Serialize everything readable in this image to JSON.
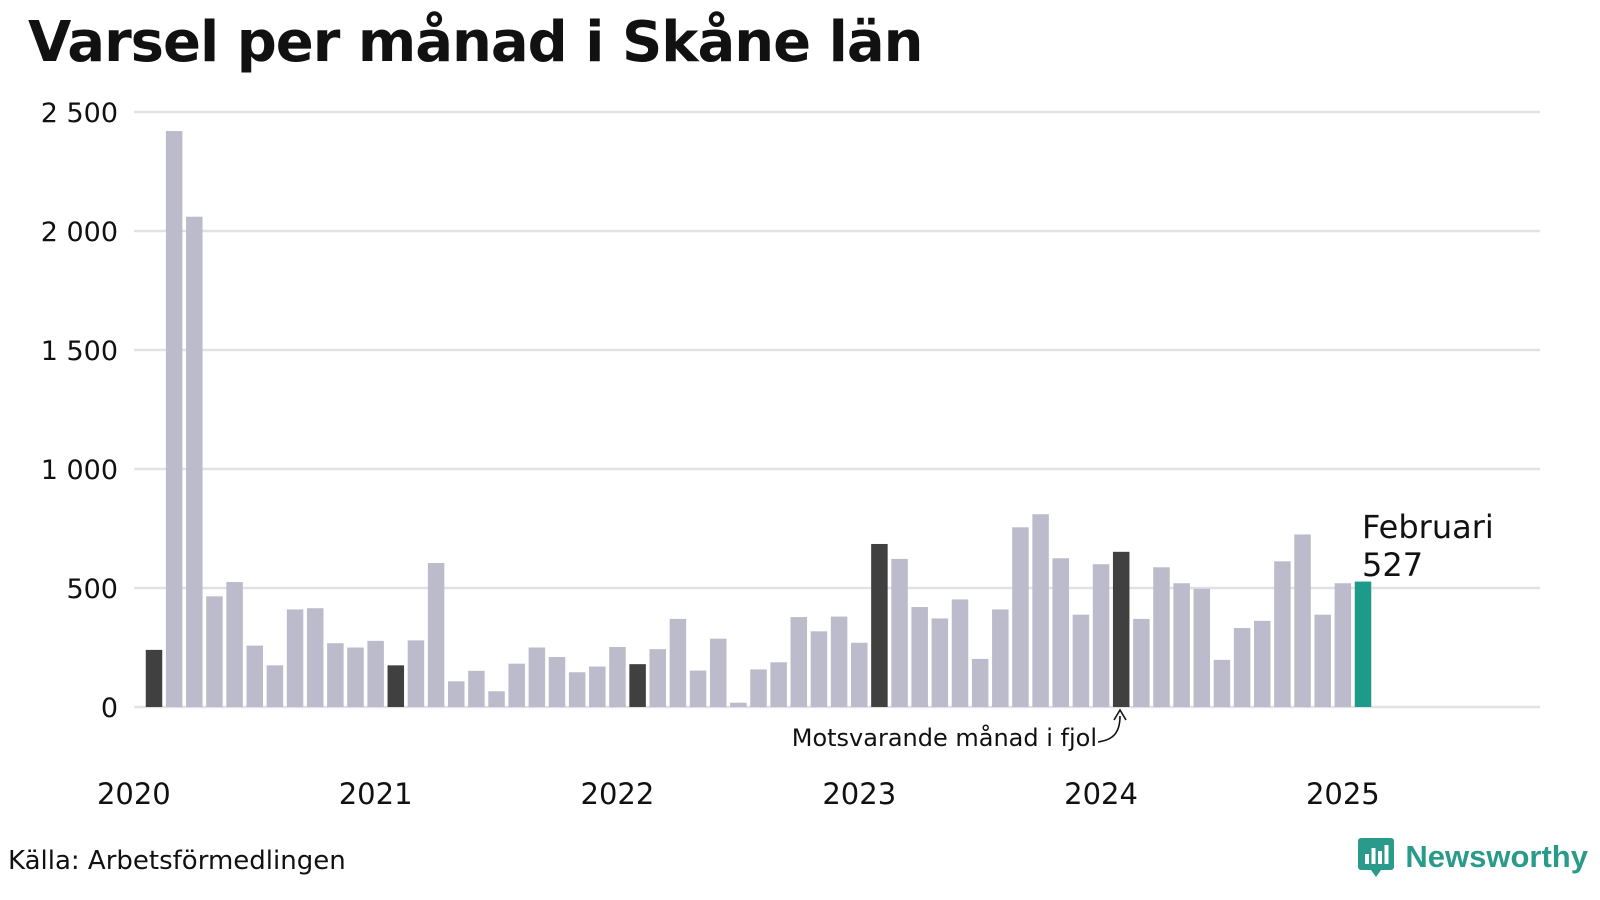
{
  "title": "Varsel per månad i Skåne län",
  "source": "Källa: Arbetsförmedlingen",
  "brand": {
    "name": "Newsworthy",
    "icon": "newsworthy-logo-icon"
  },
  "colors": {
    "bar_default": "#bcbbcb",
    "bar_same_month": "#404040",
    "bar_latest": "#1e9a8a",
    "grid": "#e1e1e6",
    "brand": "#2a9b8b"
  },
  "annotations": {
    "same_month_note": "Motsvarande månad i fjol",
    "latest_month": "Februari",
    "latest_value": "527"
  },
  "chart_data": {
    "type": "bar",
    "title": "Varsel per månad i Skåne län",
    "xlabel": "",
    "ylabel": "",
    "ylim": [
      0,
      2500
    ],
    "yticks": [
      0,
      500,
      1000,
      1500,
      2000,
      2500
    ],
    "ytick_labels": [
      "0",
      "500",
      "1 000",
      "1 500",
      "2 000",
      "2 500"
    ],
    "xtick_labels": [
      "2020",
      "2021",
      "2022",
      "2023",
      "2024",
      "2025"
    ],
    "grid": true,
    "categories": [
      "2020-02",
      "2020-03",
      "2020-04",
      "2020-05",
      "2020-06",
      "2020-07",
      "2020-08",
      "2020-09",
      "2020-10",
      "2020-11",
      "2020-12",
      "2021-01",
      "2021-02",
      "2021-03",
      "2021-04",
      "2021-05",
      "2021-06",
      "2021-07",
      "2021-08",
      "2021-09",
      "2021-10",
      "2021-11",
      "2021-12",
      "2022-01",
      "2022-02",
      "2022-03",
      "2022-04",
      "2022-05",
      "2022-06",
      "2022-07",
      "2022-08",
      "2022-09",
      "2022-10",
      "2022-11",
      "2022-12",
      "2023-01",
      "2023-02",
      "2023-03",
      "2023-04",
      "2023-05",
      "2023-06",
      "2023-07",
      "2023-08",
      "2023-09",
      "2023-10",
      "2023-11",
      "2023-12",
      "2024-01",
      "2024-02",
      "2024-03",
      "2024-04",
      "2024-05",
      "2024-06",
      "2024-07",
      "2024-08",
      "2024-09",
      "2024-10",
      "2024-11",
      "2024-12",
      "2025-01",
      "2025-02"
    ],
    "values": [
      240,
      2420,
      2060,
      465,
      525,
      258,
      175,
      410,
      415,
      268,
      250,
      278,
      175,
      280,
      605,
      108,
      152,
      66,
      182,
      250,
      210,
      146,
      170,
      252,
      180,
      243,
      370,
      153,
      287,
      18,
      158,
      188,
      378,
      318,
      380,
      270,
      685,
      622,
      420,
      372,
      452,
      202,
      410,
      755,
      810,
      625,
      388,
      600,
      652,
      370,
      587,
      520,
      497,
      198,
      332,
      362,
      612,
      725,
      388,
      520,
      527
    ],
    "highlight_same_month": [
      "2020-02",
      "2021-02",
      "2022-02",
      "2023-02",
      "2024-02"
    ],
    "highlight_latest": "2025-02"
  }
}
